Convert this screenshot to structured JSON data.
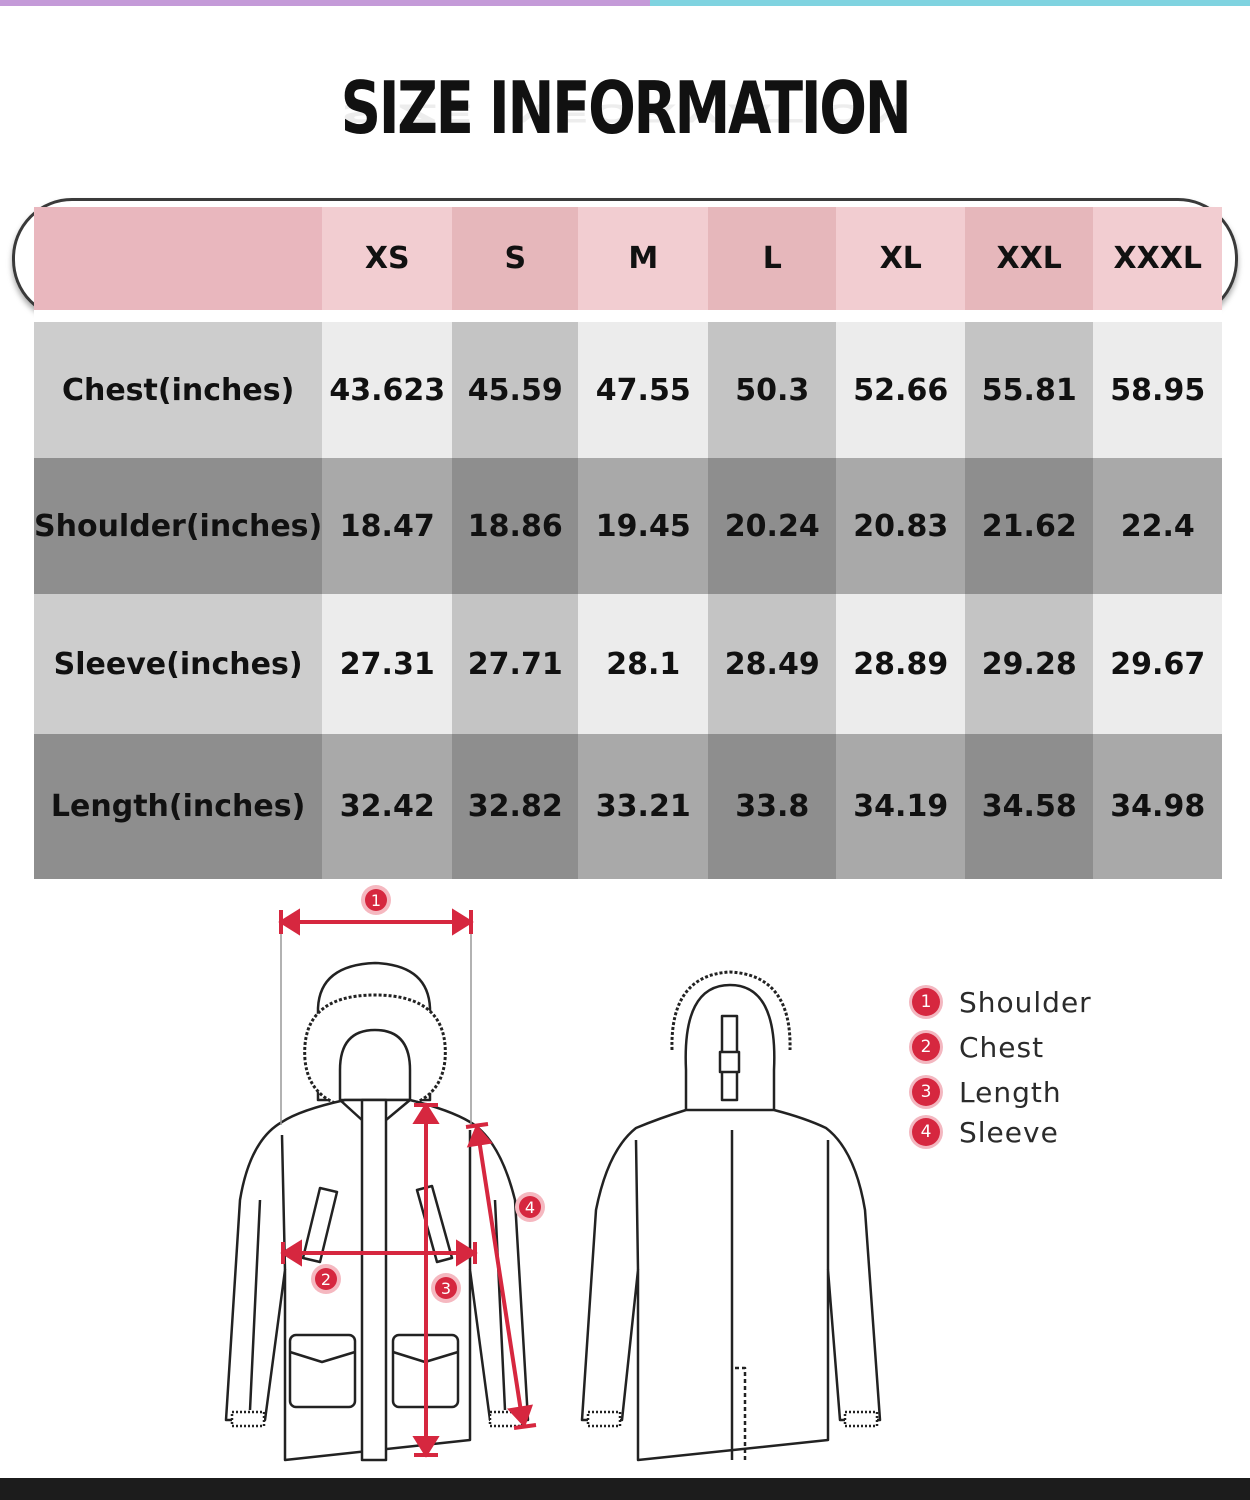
{
  "title": "SIZE INFORMATION",
  "table": {
    "sizes": [
      "XS",
      "S",
      "M",
      "L",
      "XL",
      "XXL",
      "XXXL"
    ],
    "rows": [
      {
        "label": "Chest(inches)",
        "values": [
          "43.623",
          "45.59",
          "47.55",
          "50.3",
          "52.66",
          "55.81",
          "58.95"
        ]
      },
      {
        "label": "Shoulder(inches)",
        "values": [
          "18.47",
          "18.86",
          "19.45",
          "20.24",
          "20.83",
          "21.62",
          "22.4"
        ]
      },
      {
        "label": "Sleeve(inches)",
        "values": [
          "27.31",
          "27.71",
          "28.1",
          "28.49",
          "28.89",
          "29.28",
          "29.67"
        ]
      },
      {
        "label": "Length(inches)",
        "values": [
          "32.42",
          "32.82",
          "33.21",
          "33.8",
          "34.19",
          "34.58",
          "34.98"
        ]
      }
    ]
  },
  "diagram": {
    "markers": [
      "1",
      "2",
      "3",
      "4"
    ]
  },
  "legend": [
    {
      "num": "1",
      "label": "Shoulder"
    },
    {
      "num": "2",
      "label": "Chest"
    },
    {
      "num": "3",
      "label": "Length"
    },
    {
      "num": "4",
      "label": "Sleeve"
    }
  ],
  "colors": {
    "header_pink_light": "#f2cdd1",
    "header_pink_dark": "#e6b7bb",
    "marker_red": "#d6273f",
    "top_bar_purple": "#c49ad8",
    "top_bar_cyan": "#7fd3e0"
  }
}
